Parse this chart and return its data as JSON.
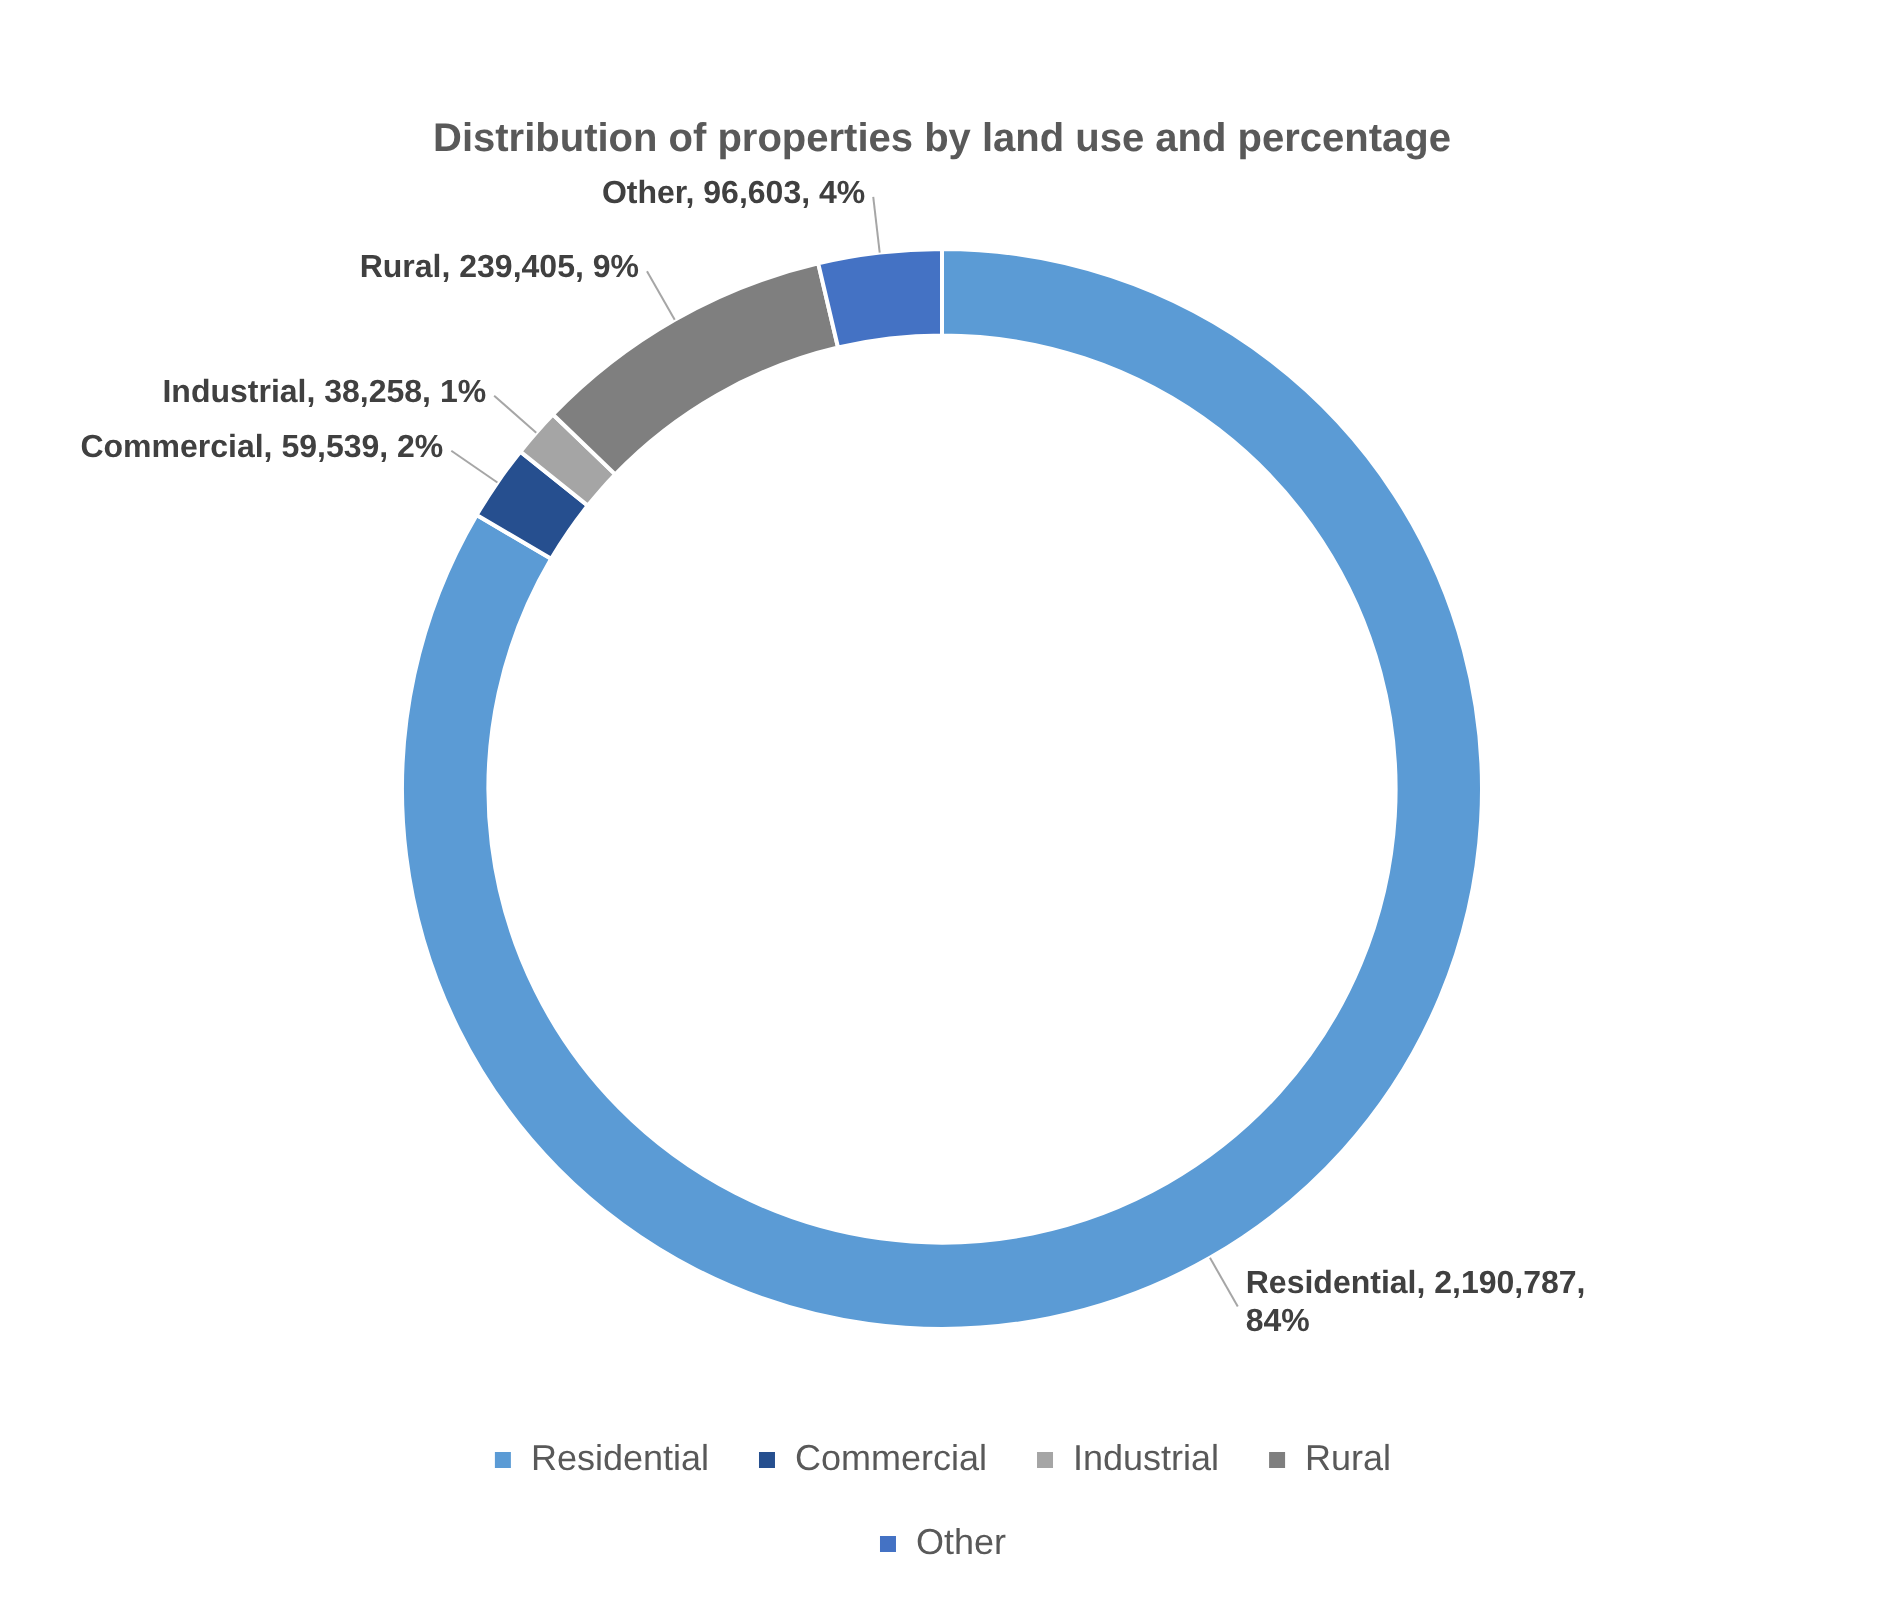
{
  "chart_data": {
    "type": "donut",
    "title": "Distribution of properties by land use and percentage",
    "categories": [
      "Residential",
      "Commercial",
      "Industrial",
      "Rural",
      "Other"
    ],
    "values": [
      2190787,
      59539,
      38258,
      239405,
      96603
    ],
    "colors": [
      "#5b9bd5",
      "#264f8f",
      "#a5a5a5",
      "#7f7f7f",
      "#4472c4"
    ],
    "value_labels": [
      "Residential, 2,190,787, 84%",
      "Commercial, 59,539, 2%",
      "Industrial, 38,258, 1%",
      "Rural, 239,405, 9%",
      "Other, 96,603, 4%"
    ],
    "legend": "bottom"
  }
}
